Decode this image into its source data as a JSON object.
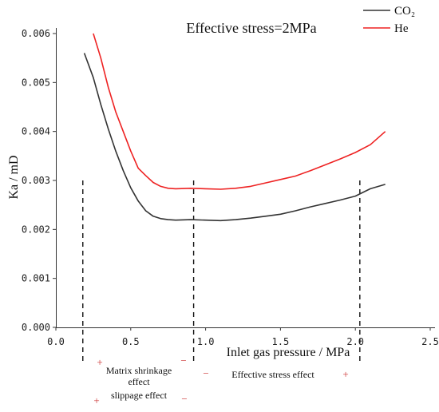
{
  "chart_data": {
    "type": "line",
    "title": "Effective stress=2MPa",
    "xlabel": "Inlet gas pressure / MPa",
    "ylabel": "Ka / mD",
    "xlim": [
      0.0,
      2.5
    ],
    "ylim": [
      0.0,
      0.006
    ],
    "x_ticks": [
      "0.0",
      "0.5",
      "1.0",
      "1.5",
      "2.0",
      "2.5"
    ],
    "y_ticks": [
      "0.000",
      "0.001",
      "0.002",
      "0.003",
      "0.004",
      "0.005",
      "0.006"
    ],
    "grid": false,
    "legend_position": "top-right",
    "series": [
      {
        "name": "CO₂",
        "color": "#333333",
        "x": [
          0.19,
          0.25,
          0.3,
          0.35,
          0.4,
          0.45,
          0.5,
          0.55,
          0.6,
          0.65,
          0.7,
          0.75,
          0.8,
          0.9,
          1.0,
          1.1,
          1.2,
          1.3,
          1.4,
          1.5,
          1.6,
          1.7,
          1.8,
          1.9,
          2.0,
          2.1,
          2.2
        ],
        "y": [
          0.0056,
          0.0051,
          0.00455,
          0.00405,
          0.0036,
          0.0032,
          0.00285,
          0.00258,
          0.00238,
          0.00227,
          0.00222,
          0.0022,
          0.00219,
          0.0022,
          0.00219,
          0.00218,
          0.0022,
          0.00223,
          0.00227,
          0.00231,
          0.00238,
          0.00246,
          0.00253,
          0.0026,
          0.00268,
          0.00283,
          0.00292
        ]
      },
      {
        "name": "He",
        "color": "#ee2222",
        "x": [
          0.25,
          0.3,
          0.35,
          0.4,
          0.45,
          0.5,
          0.55,
          0.6,
          0.65,
          0.7,
          0.75,
          0.8,
          0.9,
          1.0,
          1.1,
          1.2,
          1.3,
          1.4,
          1.5,
          1.6,
          1.7,
          1.8,
          1.9,
          2.0,
          2.1,
          2.2
        ],
        "y": [
          0.006,
          0.0055,
          0.0049,
          0.0044,
          0.004,
          0.0036,
          0.00325,
          0.0031,
          0.00296,
          0.00288,
          0.00284,
          0.00283,
          0.00284,
          0.00283,
          0.00282,
          0.00284,
          0.00288,
          0.00295,
          0.00302,
          0.00309,
          0.0032,
          0.00332,
          0.00344,
          0.00357,
          0.00373,
          0.004
        ]
      }
    ],
    "reference_lines": [
      0.18,
      0.92,
      2.03
    ],
    "annotations": {
      "matrix_line1": "Matrix shrinkage",
      "matrix_line2": "effect",
      "slippage": "slippage effect",
      "effective_stress": "Effective stress effect",
      "plus": "+",
      "minus": "−"
    }
  }
}
